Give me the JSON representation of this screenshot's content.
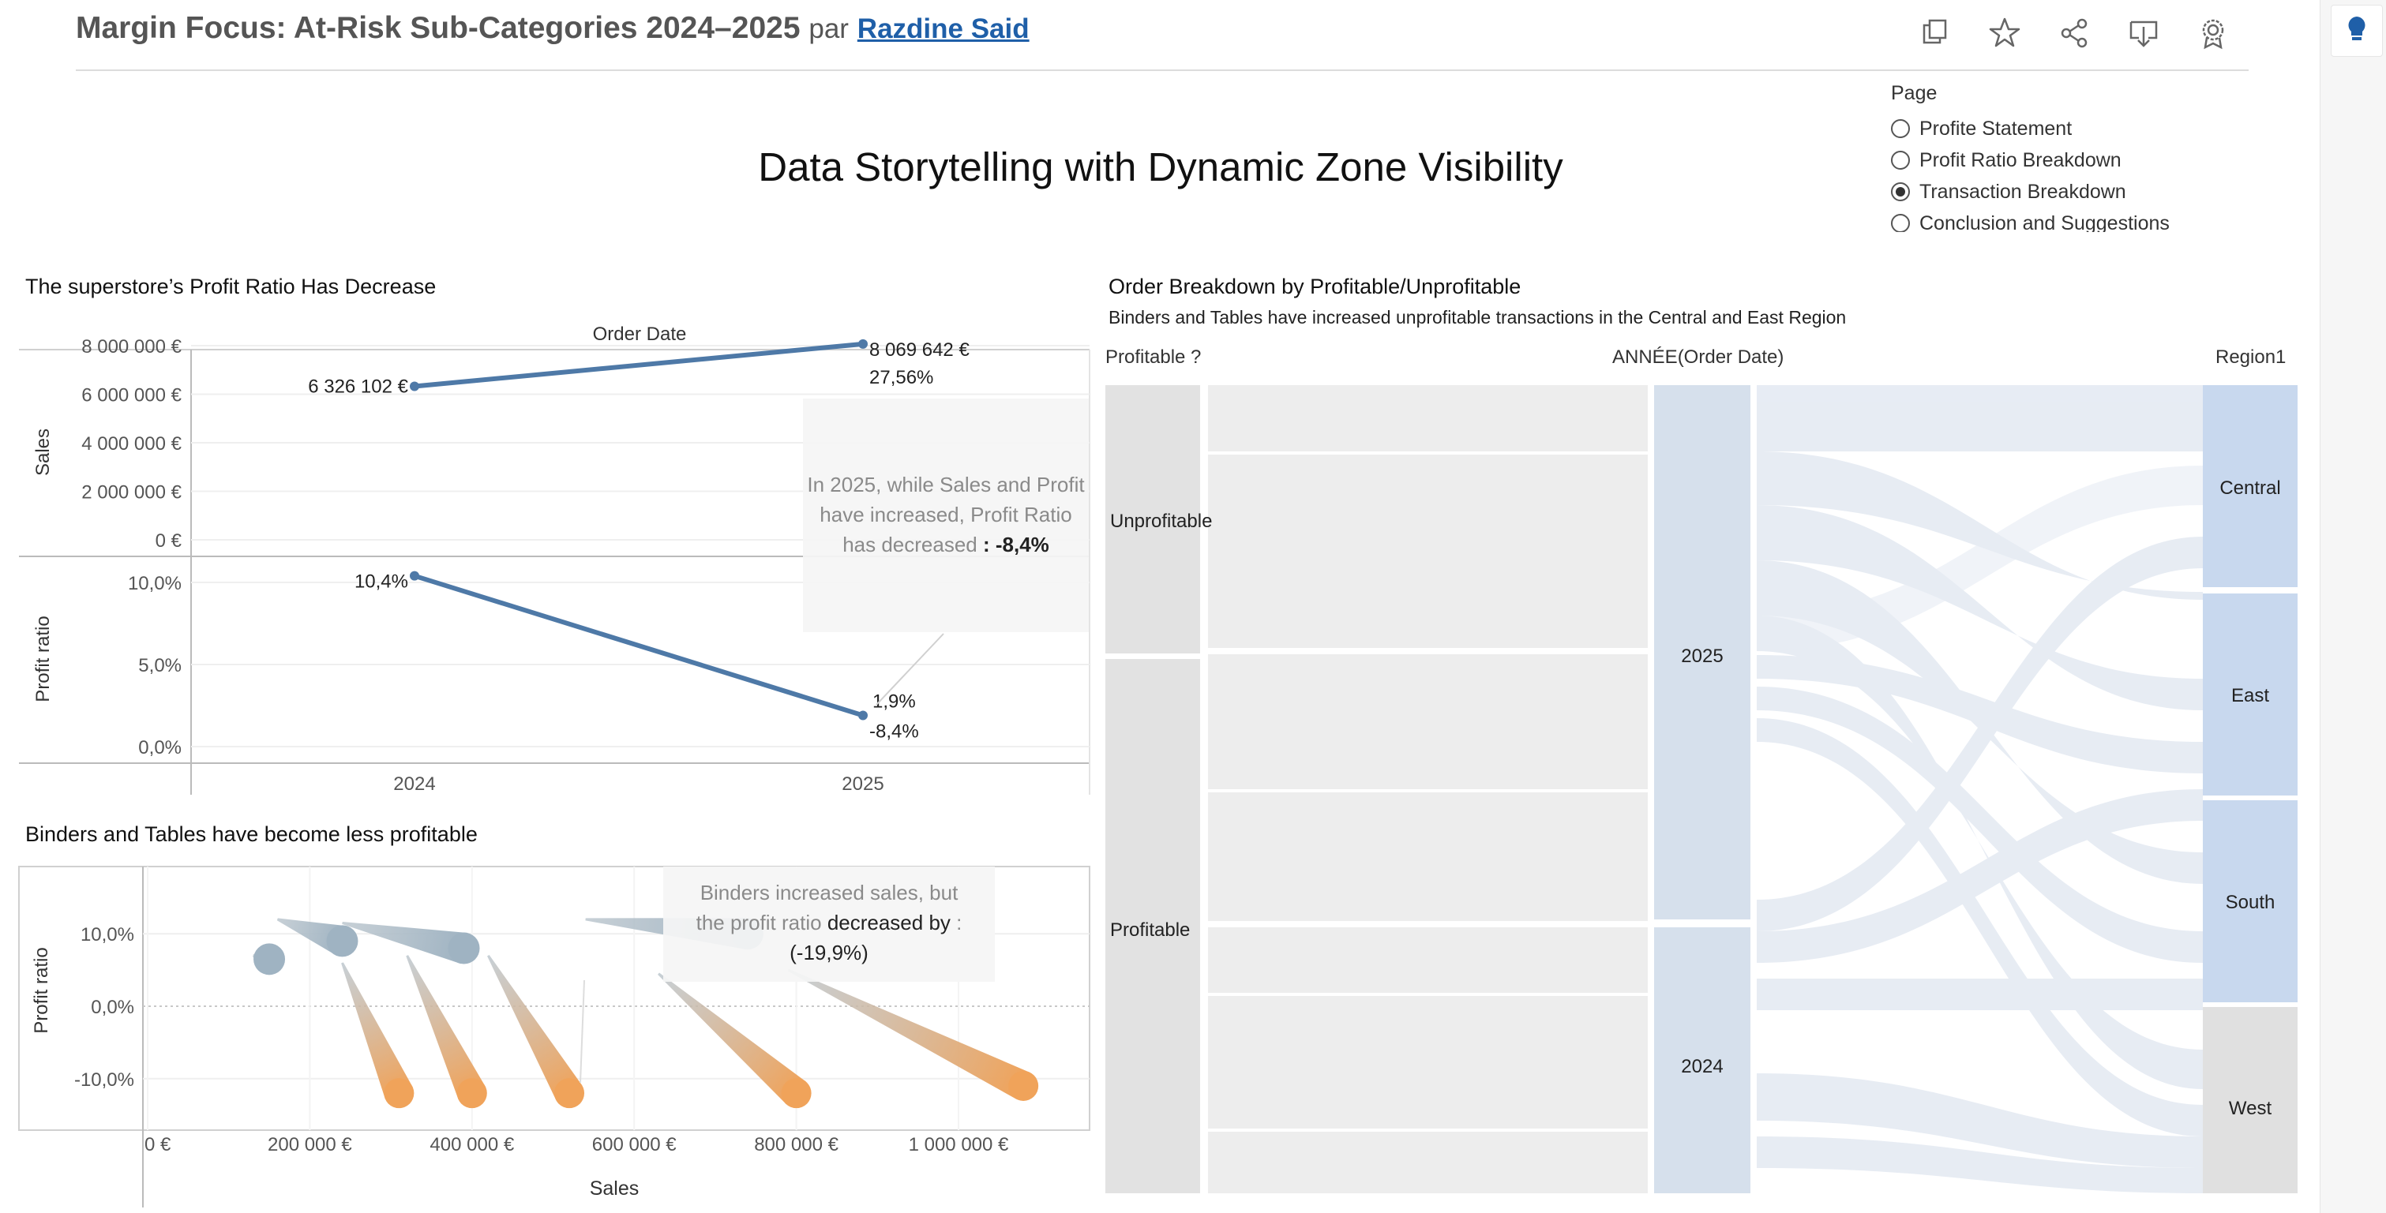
{
  "header": {
    "title": "Margin Focus: At-Risk Sub-Categories 2024–2025",
    "by": "par",
    "author": "Razdine Said"
  },
  "toolbar": {
    "icons": [
      "duplicate-icon",
      "star-icon",
      "share-icon",
      "download-icon",
      "badge-icon"
    ]
  },
  "story_title": "Data Storytelling with Dynamic Zone Visibility",
  "page_filter": {
    "label": "Page",
    "options": [
      "Profite Statement",
      "Profit Ratio Breakdown",
      "Transaction Breakdown",
      "Conclusion and Suggestions"
    ],
    "selected": "Transaction Breakdown"
  },
  "line_chart": {
    "title": "The superstore’s Profit Ratio Has Decrease",
    "column_header": "Order Date",
    "sales_axis_title": "Sales",
    "profit_axis_title": "Profit ratio",
    "sales_ticks": [
      "8 000 000 €",
      "6 000 000 €",
      "4 000 000 €",
      "2 000 000 €",
      "0 €"
    ],
    "profit_ticks": [
      "10,0%",
      "5,0%",
      "0,0%"
    ],
    "labels": {
      "sales_2024": "6 326 102 €",
      "sales_2025": "8 069 642 €",
      "sales_2025_change": "27,56%",
      "ratio_2024": "10,4%",
      "ratio_2025": "1,9%",
      "ratio_2025_change": "-8,4%"
    },
    "callout": {
      "text": "In 2025, while Sales and Profit have increased, Profit Ratio has decreased",
      "value": ": -8,4%"
    }
  },
  "comet_chart": {
    "title": "Binders and Tables have become less profitable",
    "y_axis_title": "Profit ratio",
    "x_axis_title": "Sales",
    "y_ticks": [
      "10,0%",
      "0,0%",
      "-10,0%"
    ],
    "x_ticks": [
      "0 €",
      "200 000 €",
      "400 000 €",
      "600 000 €",
      "800 000 €",
      "1 000 000 €"
    ],
    "callout": {
      "line1": "Binders increased sales, but",
      "line2_pre": "the profit ratio",
      "line2_bold": "decreased by",
      "line2_post": ":",
      "value": "(-19,9%)"
    },
    "colors": {
      "positive": "#9fb3c2",
      "negative": "#f0a35a"
    }
  },
  "sankey": {
    "title": "Order Breakdown by Profitable/Unprofitable",
    "subtitle": "Binders and Tables have increased unprofitable transactions in the Central and East Region",
    "col_headers": [
      "Profitable ?",
      "ANNÉE(Order Date)",
      "Region1"
    ],
    "profit_nodes": [
      "Unprofitable",
      "Profitable"
    ],
    "year_nodes": [
      "2025",
      "2024"
    ],
    "region_nodes": [
      "Central",
      "East",
      "South",
      "West"
    ],
    "colors": {
      "profit_node": "#e2e2e2",
      "year_node": "#d6e0ec",
      "region_node": "#c8d8ee",
      "region_west": "#e0e0e0",
      "flow_grey": "#ececec",
      "flow_blue": "#dfe6f0"
    }
  },
  "chart_data": [
    {
      "type": "line",
      "title": "The superstore’s Profit Ratio Has Decrease",
      "x": [
        "2024",
        "2025"
      ],
      "series": [
        {
          "name": "Sales",
          "values": [
            6326102,
            8069642
          ]
        },
        {
          "name": "Profit ratio",
          "values": [
            10.4,
            1.9
          ]
        }
      ],
      "ylabel": "Sales / Profit ratio",
      "ylim_sales": [
        0,
        8000000
      ],
      "ylim_profit": [
        0,
        10.5
      ]
    },
    {
      "type": "scatter",
      "title": "Binders and Tables have become less profitable",
      "xlabel": "Sales",
      "ylabel": "Profit ratio",
      "xlim": [
        0,
        1150000
      ],
      "ylim": [
        -14,
        15
      ],
      "comets": [
        {
          "sales_start": 130000,
          "ratio_start": 7.0,
          "sales_end": 150000,
          "ratio_end": 6.5,
          "kind": "positive"
        },
        {
          "sales_start": 160000,
          "ratio_start": 12.0,
          "sales_end": 240000,
          "ratio_end": 9.0,
          "kind": "positive"
        },
        {
          "sales_start": 240000,
          "ratio_start": 11.5,
          "sales_end": 390000,
          "ratio_end": 8.0,
          "kind": "positive"
        },
        {
          "sales_start": 540000,
          "ratio_start": 12.0,
          "sales_end": 740000,
          "ratio_end": 10.0,
          "kind": "positive"
        },
        {
          "sales_start": 240000,
          "ratio_start": 6.0,
          "sales_end": 310000,
          "ratio_end": -12.0,
          "kind": "negative"
        },
        {
          "sales_start": 320000,
          "ratio_start": 7.0,
          "sales_end": 400000,
          "ratio_end": -12.0,
          "kind": "negative"
        },
        {
          "sales_start": 420000,
          "ratio_start": 7.0,
          "sales_end": 520000,
          "ratio_end": -12.0,
          "kind": "negative"
        },
        {
          "sales_start": 630000,
          "ratio_start": 4.5,
          "sales_end": 800000,
          "ratio_end": -12.0,
          "kind": "negative"
        },
        {
          "sales_start": 790000,
          "ratio_start": 5.0,
          "sales_end": 1080000,
          "ratio_end": -11.0,
          "kind": "negative"
        }
      ]
    }
  ]
}
